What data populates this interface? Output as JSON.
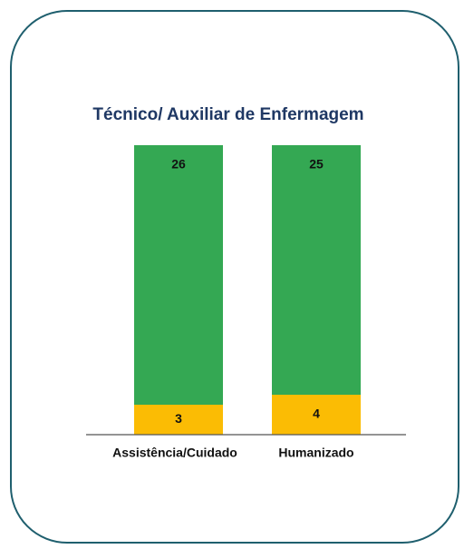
{
  "chart_data": {
    "type": "stacked_bar",
    "title": "Técnico/ Auxiliar de Enfermagem",
    "categories": [
      "Assistência/Cuidado",
      "Humanizado"
    ],
    "series": [
      {
        "color": "#fbbc04",
        "values": [
          3,
          4
        ]
      },
      {
        "color": "#34a853",
        "values": [
          26,
          25
        ]
      }
    ]
  }
}
